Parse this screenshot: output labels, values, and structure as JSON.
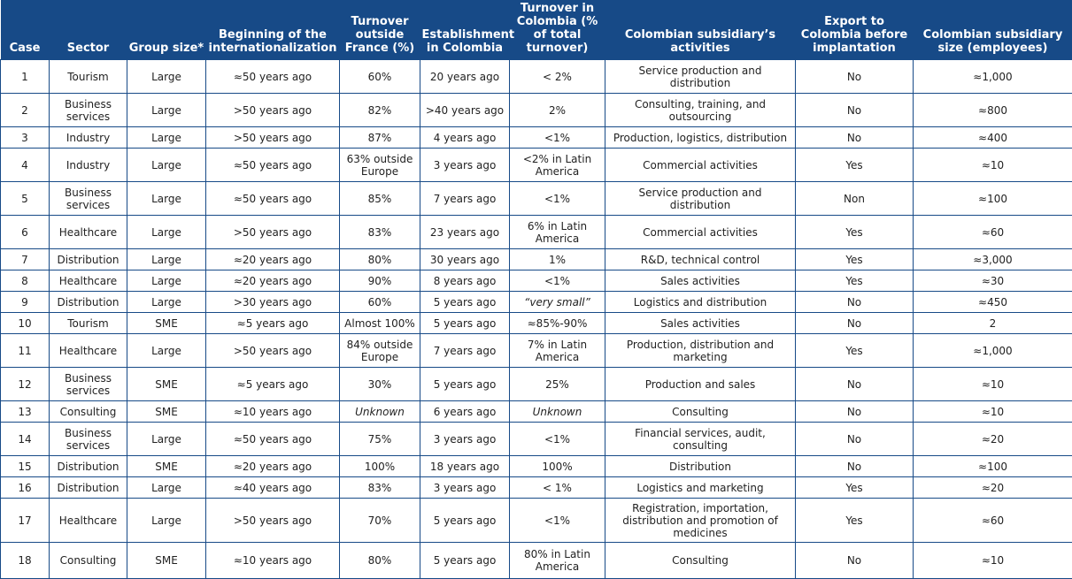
{
  "table": {
    "headers": [
      "Case",
      "Sector",
      "Group size*",
      "Beginning of the internationalization",
      "Turnover outside France (%)",
      "Establishment in Colombia",
      "Turnover in Colombia (% of total turnover)",
      "Colombian subsidiary’s activities",
      "Export to Colombia before implantation",
      "Colombian subsidiary size (employees)"
    ],
    "rows": [
      [
        "1",
        "Tourism",
        "Large",
        "≈50 years ago",
        "60%",
        "20 years ago",
        "< 2%",
        "Service production and distribution",
        "No",
        "≈1,000"
      ],
      [
        "2",
        "Business services",
        "Large",
        ">50 years ago",
        "82%",
        ">40 years ago",
        "2%",
        "Consulting, training, and outsourcing",
        "No",
        "≈800"
      ],
      [
        "3",
        "Industry",
        "Large",
        ">50 years ago",
        "87%",
        "4 years ago",
        "<1%",
        "Production, logistics, distribution",
        "No",
        "≈400"
      ],
      [
        "4",
        "Industry",
        "Large",
        "≈50 years ago",
        "63% outside Europe",
        "3 years ago",
        "<2% in Latin America",
        "Commercial activities",
        "Yes",
        "≈10"
      ],
      [
        "5",
        "Business services",
        "Large",
        "≈50 years ago",
        "85%",
        "7 years ago",
        "<1%",
        "Service production and distribution",
        "Non",
        "≈100"
      ],
      [
        "6",
        "Healthcare",
        "Large",
        ">50 years ago",
        "83%",
        "23 years ago",
        "6% in Latin America",
        "Commercial activities",
        "Yes",
        "≈60"
      ],
      [
        "7",
        "Distribution",
        "Large",
        "≈20 years ago",
        "80%",
        "30 years ago",
        "1%",
        "R&D, technical control",
        "Yes",
        "≈3,000"
      ],
      [
        "8",
        "Healthcare",
        "Large",
        "≈20 years ago",
        "90%",
        "8 years ago",
        "<1%",
        "Sales activities",
        "Yes",
        "≈30"
      ],
      [
        "9",
        "Distribution",
        "Large",
        ">30 years ago",
        "60%",
        "5 years ago",
        "“very small”",
        "Logistics and distribution",
        "No",
        "≈450"
      ],
      [
        "10",
        "Tourism",
        "SME",
        "≈5 years ago",
        "Almost 100%",
        "5 years ago",
        "≈85%-90%",
        "Sales activities",
        "No",
        "2"
      ],
      [
        "11",
        "Healthcare",
        "Large",
        ">50 years ago",
        "84% outside Europe",
        "7 years ago",
        "7% in Latin America",
        "Production, distribution and marketing",
        "Yes",
        "≈1,000"
      ],
      [
        "12",
        "Business services",
        "SME",
        "≈5 years ago",
        "30%",
        "5 years ago",
        "25%",
        "Production and sales",
        "No",
        "≈10"
      ],
      [
        "13",
        "Consulting",
        "SME",
        "≈10 years ago",
        "Unknown",
        "6 years ago",
        "Unknown",
        "Consulting",
        "No",
        "≈10"
      ],
      [
        "14",
        "Business services",
        "Large",
        "≈50 years ago",
        "75%",
        "3 years ago",
        "<1%",
        "Financial services, audit, consulting",
        "No",
        "≈20"
      ],
      [
        "15",
        "Distribution",
        "SME",
        "≈20 years ago",
        "100%",
        "18 years ago",
        "100%",
        "Distribution",
        "No",
        "≈100"
      ],
      [
        "16",
        "Distribution",
        "Large",
        "≈40 years ago",
        "83%",
        "3 years ago",
        "< 1%",
        "Logistics and marketing",
        "Yes",
        "≈20"
      ],
      [
        "17",
        "Healthcare",
        "Large",
        ">50 years ago",
        "70%",
        "5 years ago",
        "<1%",
        "Registration, importation, distribution and promotion of medicines",
        "Yes",
        "≈60"
      ],
      [
        "18",
        "Consulting",
        "SME",
        "≈10 years ago",
        "80%",
        "5 years ago",
        "80% in Latin America",
        "Consulting",
        "No",
        "≈10"
      ]
    ]
  }
}
